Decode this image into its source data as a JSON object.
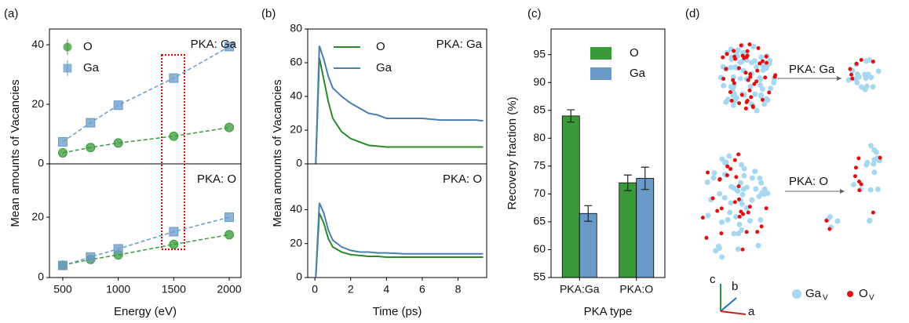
{
  "chart_data": [
    {
      "type": "line",
      "panel": "(a)",
      "xlabel": "Energy (eV)",
      "ylabel": "Mean amounts of Vacancies",
      "xlim": [
        380,
        2106
      ],
      "xticks": [
        500,
        1000,
        1500,
        2000
      ],
      "linestyle": "dashed",
      "x": [
        500,
        750,
        1000,
        1500,
        2000
      ],
      "subplots": [
        {
          "annotation": "PKA: Ga",
          "ylim": [
            0,
            45.3
          ],
          "yticks": [
            0,
            20,
            40
          ],
          "series": [
            {
              "name": "O",
              "color": "#3a9a3a",
              "marker": "circle",
              "values": [
                3.7,
                5.5,
                7.0,
                9.3,
                12.2
              ]
            },
            {
              "name": "Ga",
              "color": "#6a9bc8",
              "marker": "square",
              "values": [
                7.4,
                13.8,
                19.7,
                28.8,
                39.4
              ]
            }
          ]
        },
        {
          "annotation": "PKA: O",
          "ylim": [
            0,
            37.7
          ],
          "yticks": [
            0,
            20
          ],
          "series": [
            {
              "color": "#3a9a3a",
              "marker": "circle",
              "values": [
                4.1,
                6.0,
                7.5,
                11.0,
                14.2
              ]
            },
            {
              "color": "#6a9bc8",
              "marker": "square",
              "values": [
                4.0,
                6.8,
                9.5,
                15.2,
                20.0
              ]
            }
          ]
        }
      ]
    },
    {
      "type": "line",
      "panel": "(b)",
      "xlabel": "Time (ps)",
      "ylabel": "Mean amounts of Vacancies",
      "xlim": [
        -0.4,
        9.6
      ],
      "xticks": [
        0,
        2,
        4,
        6,
        8
      ],
      "linestyle": "solid",
      "x": [
        0.05,
        0.25,
        0.5,
        0.75,
        1,
        1.5,
        2,
        2.5,
        3,
        3.5,
        4,
        5,
        6,
        7,
        8,
        9,
        9.4
      ],
      "subplots": [
        {
          "annotation": "PKA: Ga",
          "ylim": [
            0,
            80
          ],
          "yticks": [
            0,
            20,
            40,
            60,
            80
          ],
          "series": [
            {
              "name": "O",
              "color": "#2a8a2a",
              "values": [
                0,
                63,
                50,
                37,
                27,
                19,
                15,
                13,
                11,
                10.5,
                10,
                10,
                10,
                10,
                10,
                10,
                10
              ]
            },
            {
              "name": "Ga",
              "color": "#4a7fb0",
              "values": [
                0,
                70,
                62,
                52,
                45,
                40,
                36,
                33,
                30,
                29,
                27,
                27,
                27,
                26,
                26,
                26,
                25.5
              ]
            }
          ]
        },
        {
          "annotation": "PKA: O",
          "ylim": [
            0,
            67
          ],
          "yticks": [
            0,
            20,
            40
          ],
          "series": [
            {
              "color": "#2a8a2a",
              "values": [
                0,
                38,
                32,
                23,
                18,
                15,
                13.5,
                13,
                12.5,
                12.5,
                12,
                12,
                12,
                12,
                12,
                12,
                12
              ]
            },
            {
              "color": "#4a7fb0",
              "values": [
                0,
                44,
                38,
                28,
                22,
                18,
                16,
                15,
                15,
                14.5,
                14.5,
                14,
                14,
                14,
                14,
                14,
                14
              ]
            }
          ]
        }
      ]
    },
    {
      "type": "bar",
      "panel": "(c)",
      "xlabel": "PKA type",
      "ylabel": "Recovery fraction (%)",
      "categories": [
        "PKA:Ga",
        "PKA:O"
      ],
      "ylim": [
        55,
        99.6
      ],
      "yticks": [
        55,
        60,
        65,
        70,
        75,
        80,
        85,
        90,
        95
      ],
      "series": [
        {
          "name": "O",
          "color": "#3a9a3a",
          "values": [
            84.0,
            72.0
          ],
          "errors": [
            1.1,
            1.4
          ]
        },
        {
          "name": "Ga",
          "color": "#6a9bc8",
          "values": [
            66.5,
            72.8
          ],
          "errors": [
            1.4,
            2.0
          ]
        }
      ]
    }
  ],
  "panel_d": {
    "panel": "(d)",
    "annotations": [
      "PKA: Ga",
      "PKA: O"
    ],
    "axes": [
      "c",
      "b",
      "a"
    ],
    "legend": [
      {
        "text": "Ga",
        "sub": "V"
      },
      {
        "text": "O",
        "sub": "V"
      }
    ]
  }
}
